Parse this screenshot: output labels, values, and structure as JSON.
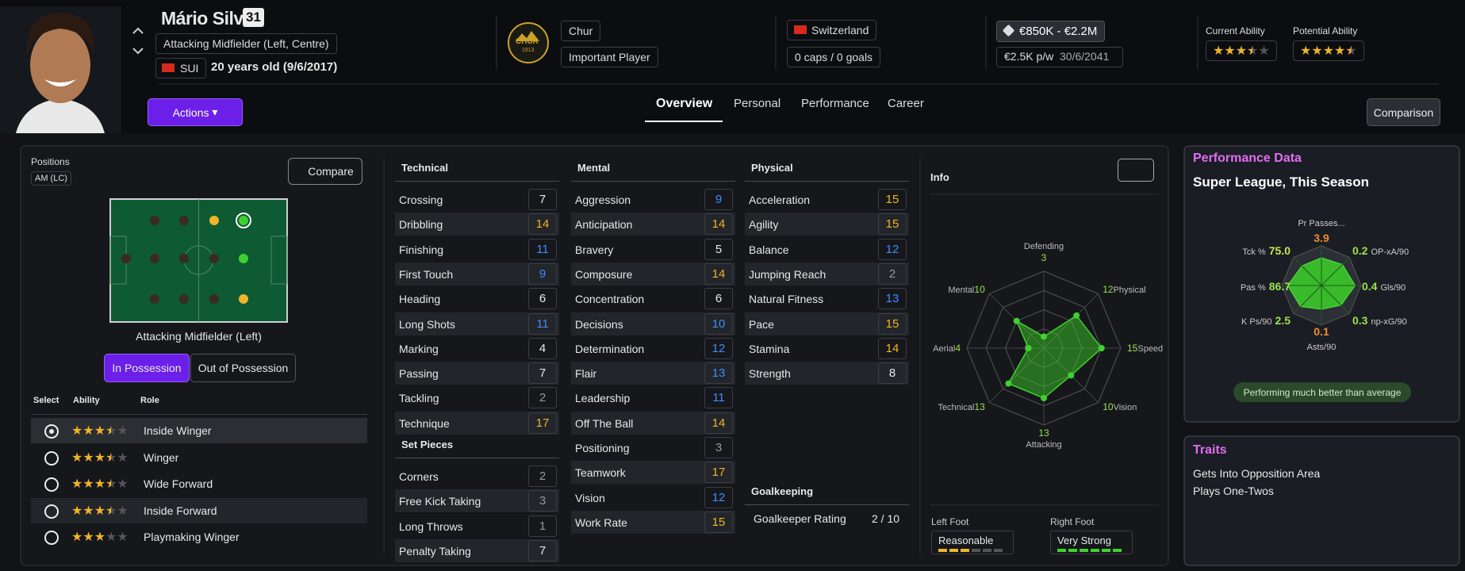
{
  "header": {
    "name": "Mário Silva",
    "number": "31",
    "role": "Attacking Midfielder (Left, Centre)",
    "nation_code": "SUI",
    "age": "20 years old (9/6/2017)",
    "club_logo": "CHUR",
    "club_logo_year": "1913",
    "club": "Chur",
    "status": "Important Player",
    "country": "Switzerland",
    "caps": "0 caps / 0 goals",
    "value": "€850K - €2.2M",
    "wage": "€2.5K p/w",
    "contract": "30/6/2041",
    "current_ability_label": "Current Ability",
    "current_ability": 3.5,
    "potential_ability_label": "Potential Ability",
    "potential_ability": 4.5
  },
  "nav": {
    "actions": "Actions",
    "tabs": [
      "Overview",
      "Personal",
      "Performance",
      "Career"
    ],
    "comparison": "Comparison"
  },
  "positions": {
    "title": "Positions",
    "code": "AM (LC)",
    "compare": "Compare",
    "pitch_label": "Attacking Midfielder (Left)",
    "toggle": [
      "In Possession",
      "Out of Possession"
    ],
    "columns": [
      "Select",
      "Ability",
      "Role"
    ],
    "roles": [
      {
        "stars": 3.5,
        "role": "Inside Winger"
      },
      {
        "stars": 3.5,
        "role": "Winger"
      },
      {
        "stars": 3.5,
        "role": "Wide Forward"
      },
      {
        "stars": 3.5,
        "role": "Inside Forward"
      },
      {
        "stars": 3.0,
        "role": "Playmaking Winger"
      }
    ]
  },
  "attributes": {
    "technical": {
      "title": "Technical",
      "rows": [
        {
          "name": "Crossing",
          "value": 7
        },
        {
          "name": "Dribbling",
          "value": 14
        },
        {
          "name": "Finishing",
          "value": 11
        },
        {
          "name": "First Touch",
          "value": 9
        },
        {
          "name": "Heading",
          "value": 6
        },
        {
          "name": "Long Shots",
          "value": 11
        },
        {
          "name": "Marking",
          "value": 4
        },
        {
          "name": "Passing",
          "value": 7,
          "arrow": true
        },
        {
          "name": "Tackling",
          "value": 2
        },
        {
          "name": "Technique",
          "value": 17
        }
      ]
    },
    "set_pieces": {
      "title": "Set Pieces",
      "rows": [
        {
          "name": "Corners",
          "value": 2
        },
        {
          "name": "Free Kick Taking",
          "value": 3
        },
        {
          "name": "Long Throws",
          "value": 1
        },
        {
          "name": "Penalty Taking",
          "value": 7
        }
      ]
    },
    "mental": {
      "title": "Mental",
      "rows": [
        {
          "name": "Aggression",
          "value": 9
        },
        {
          "name": "Anticipation",
          "value": 14
        },
        {
          "name": "Bravery",
          "value": 5
        },
        {
          "name": "Composure",
          "value": 14
        },
        {
          "name": "Concentration",
          "value": 6
        },
        {
          "name": "Decisions",
          "value": 10
        },
        {
          "name": "Determination",
          "value": 12
        },
        {
          "name": "Flair",
          "value": 13
        },
        {
          "name": "Leadership",
          "value": 11,
          "arrow": true
        },
        {
          "name": "Off The Ball",
          "value": 14
        },
        {
          "name": "Positioning",
          "value": 3
        },
        {
          "name": "Teamwork",
          "value": 17
        },
        {
          "name": "Vision",
          "value": 12
        },
        {
          "name": "Work Rate",
          "value": 15
        }
      ]
    },
    "physical": {
      "title": "Physical",
      "rows": [
        {
          "name": "Acceleration",
          "value": 15
        },
        {
          "name": "Agility",
          "value": 15
        },
        {
          "name": "Balance",
          "value": 12
        },
        {
          "name": "Jumping Reach",
          "value": 2
        },
        {
          "name": "Natural Fitness",
          "value": 13
        },
        {
          "name": "Pace",
          "value": 15
        },
        {
          "name": "Stamina",
          "value": 14
        },
        {
          "name": "Strength",
          "value": 8
        }
      ]
    },
    "goalkeeping": {
      "title": "Goalkeeping",
      "label": "Goalkeeper Rating",
      "value": "2 / 10"
    }
  },
  "info": {
    "title": "Info",
    "radar": {
      "rlim": [
        0,
        20
      ],
      "axes": [
        {
          "label": "Defending",
          "value": 3
        },
        {
          "label": "Physical",
          "value": 12
        },
        {
          "label": "Speed",
          "value": 15
        },
        {
          "label": "Vision",
          "value": 10
        },
        {
          "label": "Attacking",
          "value": 13
        },
        {
          "label": "Technical",
          "value": 13
        },
        {
          "label": "Aerial",
          "value": 4
        },
        {
          "label": "Mental",
          "value": 10
        }
      ]
    },
    "left_foot": {
      "label": "Left Foot",
      "rating": "Reasonable",
      "level": 3,
      "color": "#f0b429"
    },
    "right_foot": {
      "label": "Right Foot",
      "rating": "Very Strong",
      "level": 6,
      "color": "#3fd12f"
    }
  },
  "performance": {
    "title": "Performance Data",
    "subtitle": "Super League, This Season",
    "stats": [
      {
        "label": "Pr Passes...",
        "value": "3.9",
        "color": "#f28c28"
      },
      {
        "label": "OP-xA/90",
        "value": "0.2",
        "color": "#9be34a"
      },
      {
        "label": "Gls/90",
        "value": "0.4",
        "color": "#9be34a"
      },
      {
        "label": "np-xG/90",
        "value": "0.3",
        "color": "#9be34a"
      },
      {
        "label": "Asts/90",
        "value": "0.1",
        "color": "#f28c28"
      },
      {
        "label": "K Ps/90",
        "value": "2.5",
        "color": "#9be34a"
      },
      {
        "label": "Pas %",
        "value": "86.7",
        "color": "#9be34a"
      },
      {
        "label": "Tck %",
        "value": "75.0",
        "color": "#c9e84a"
      }
    ],
    "badge": "Performing much better than average"
  },
  "traits": {
    "title": "Traits",
    "items": [
      "Gets Into Opposition Area",
      "Plays One-Twos"
    ]
  }
}
